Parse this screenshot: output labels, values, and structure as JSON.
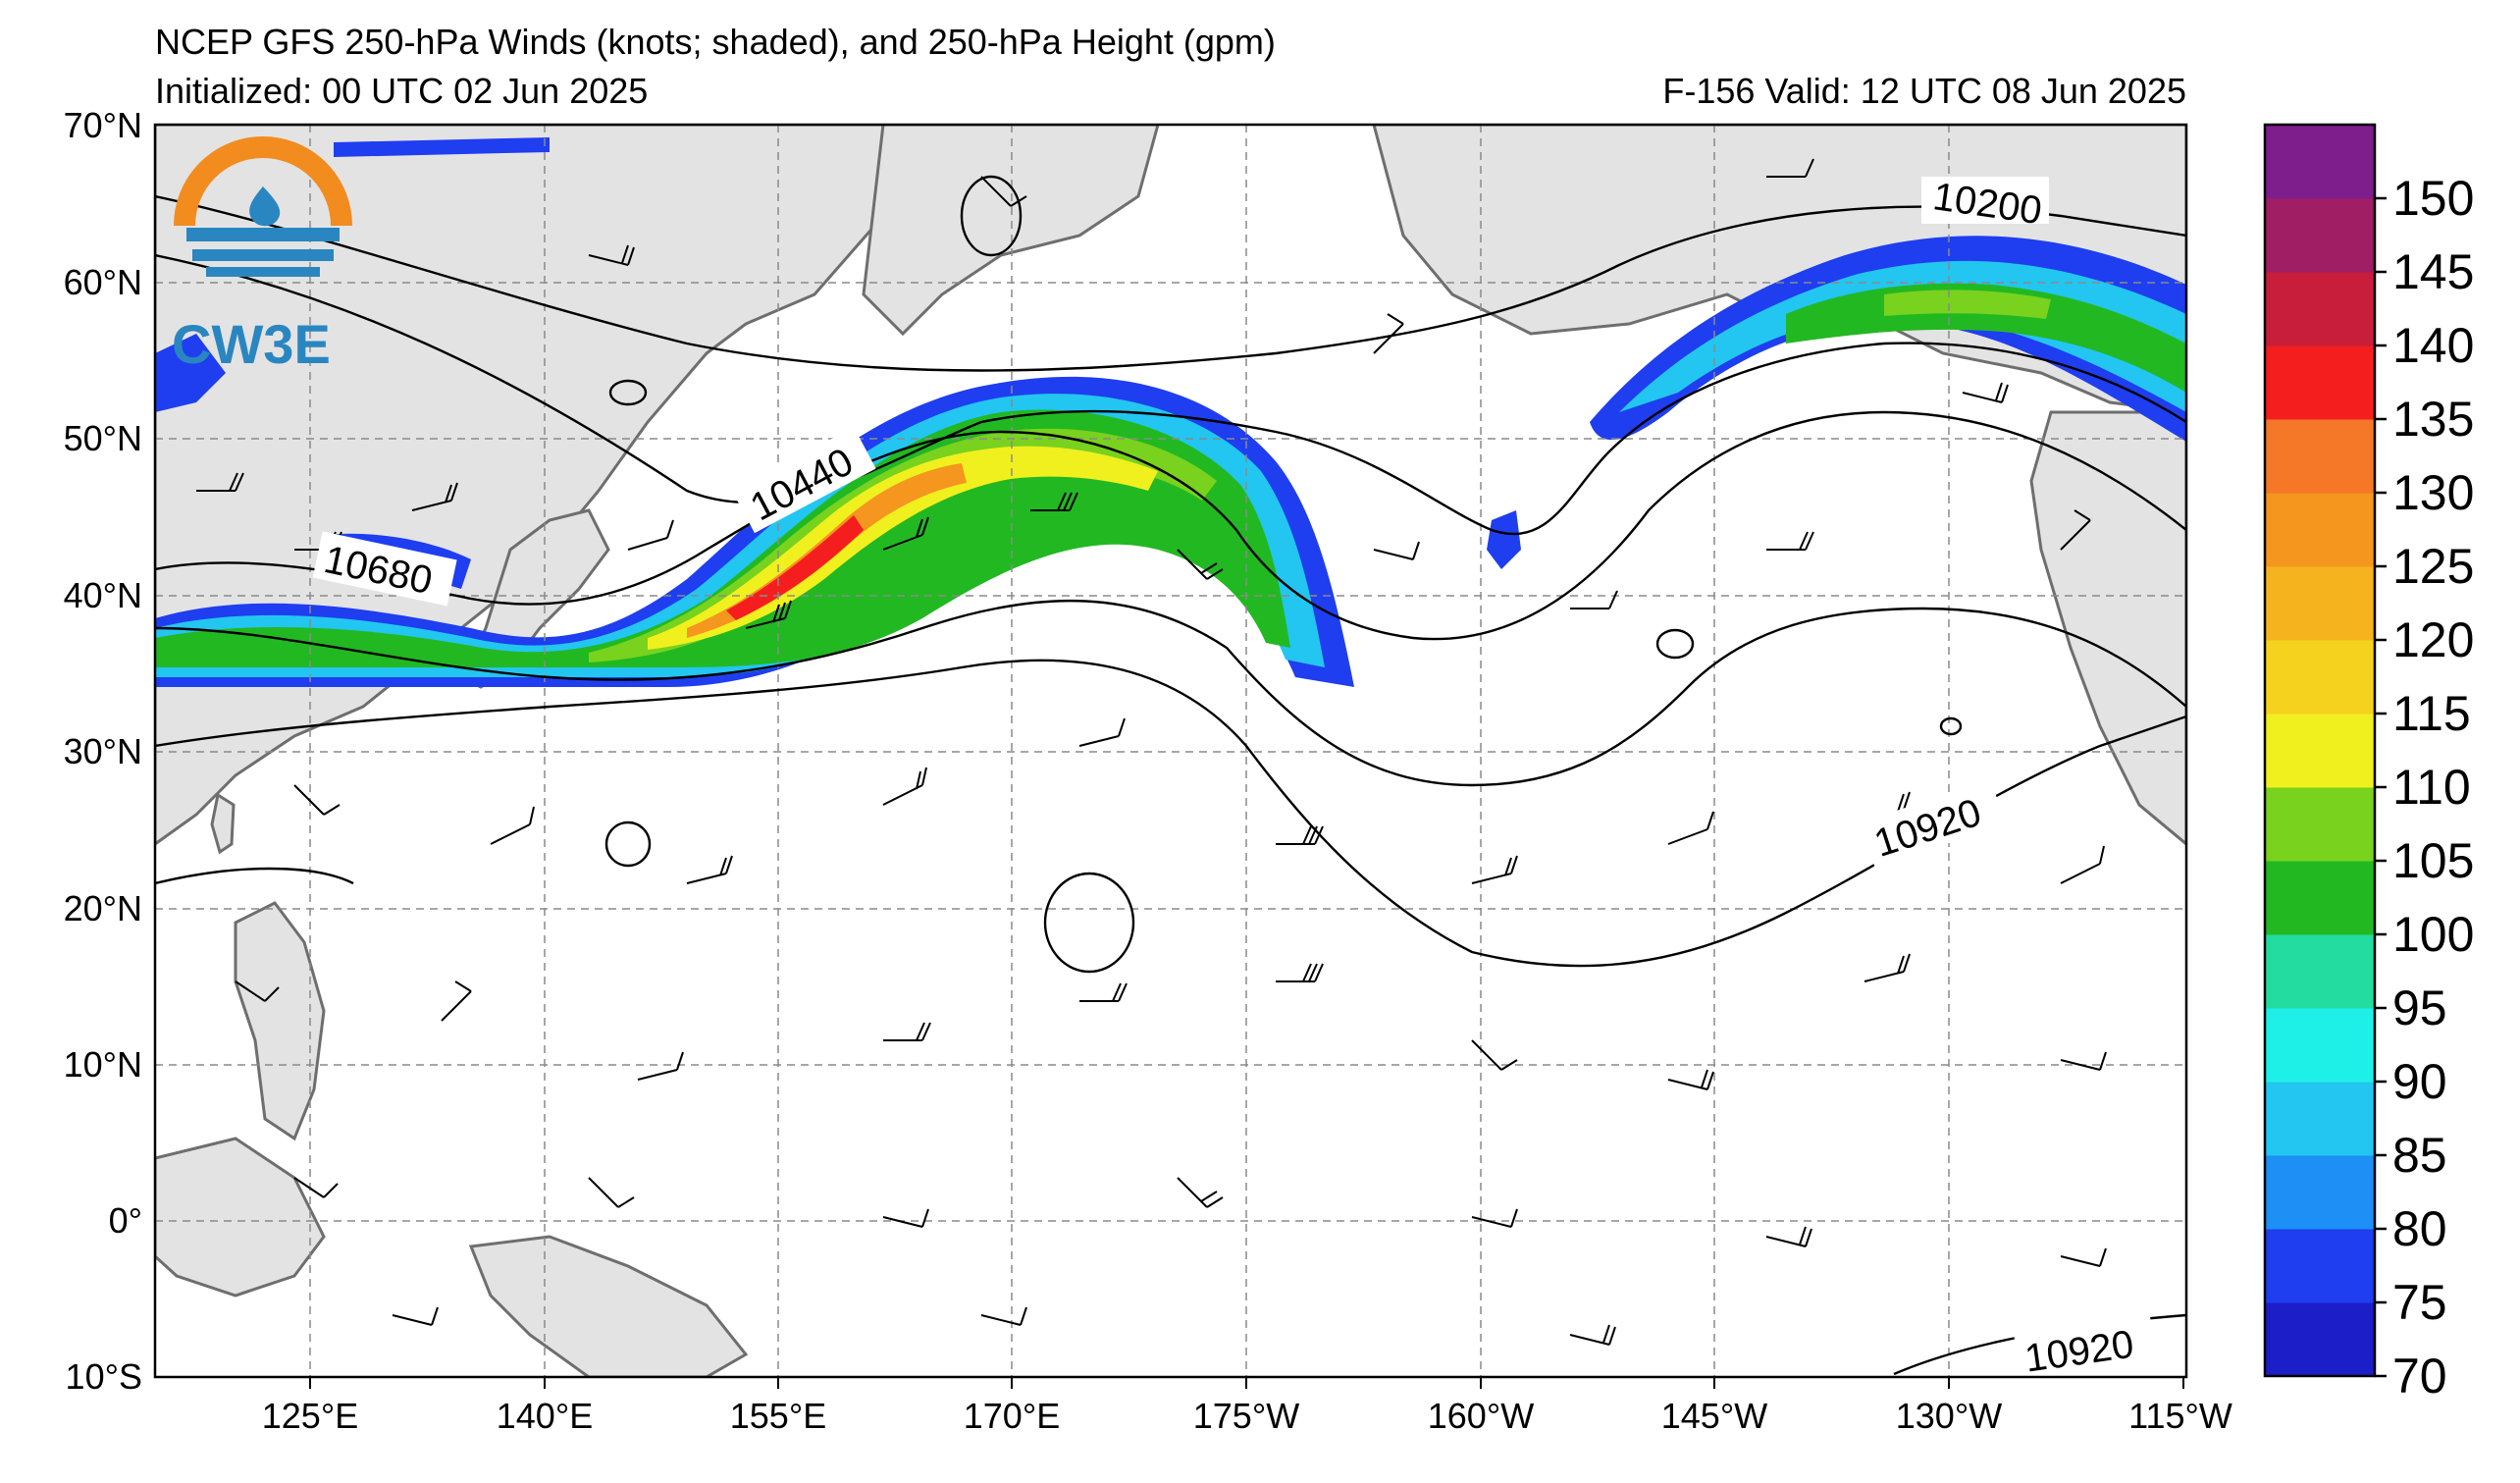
{
  "title": {
    "line1": "NCEP GFS 250-hPa Winds (knots; shaded), and 250-hPa Height (gpm)",
    "line2_left": "Initialized: 00 UTC 02 Jun 2025",
    "line2_right": "F-156  Valid: 12 UTC 08 Jun 2025"
  },
  "logo": {
    "text": "CW3E",
    "ring_color": "#f28c1f",
    "wave_color": "#2a86c0"
  },
  "map": {
    "lat_labels": [
      "70°N",
      "60°N",
      "50°N",
      "40°N",
      "30°N",
      "20°N",
      "10°N",
      "0°",
      "10°S"
    ],
    "lon_labels": [
      "125°E",
      "140°E",
      "155°E",
      "170°E",
      "175°W",
      "160°W",
      "145°W",
      "130°W",
      "115°W"
    ],
    "contour_labels": [
      "10200",
      "10440",
      "10680",
      "10920",
      "10920"
    ]
  },
  "colorbar": {
    "ticks": [
      "70",
      "75",
      "80",
      "85",
      "90",
      "95",
      "100",
      "105",
      "110",
      "115",
      "120",
      "125",
      "130",
      "135",
      "140",
      "145",
      "150"
    ],
    "colors": [
      "#1c1ec8",
      "#1f3ef0",
      "#1e8ff5",
      "#22c6f0",
      "#1ef0e8",
      "#22dca0",
      "#22b822",
      "#78d21e",
      "#f0f01e",
      "#f5d21e",
      "#f5b41e",
      "#f5961e",
      "#f57828",
      "#f51e1e",
      "#c81e3c",
      "#a01e64",
      "#7d1e8c"
    ]
  }
}
